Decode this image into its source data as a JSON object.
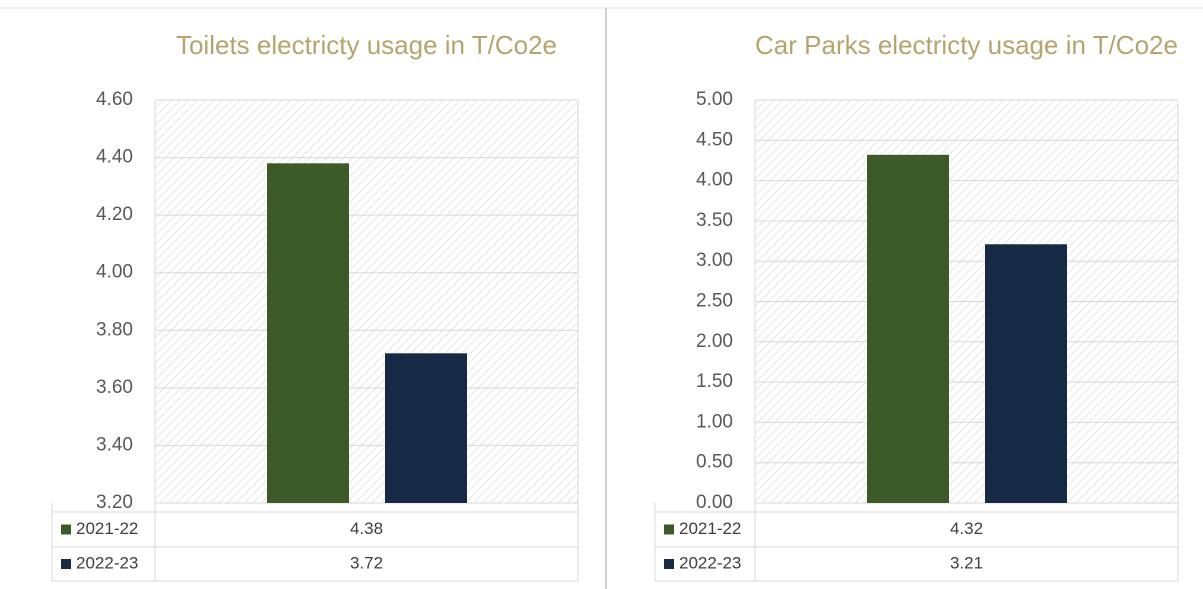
{
  "chart_data": [
    {
      "type": "bar",
      "title": "Toilets electricty usage in T/Co2e",
      "series": [
        {
          "name": "2021-22",
          "color": "#3b5a27",
          "values": [
            4.38
          ]
        },
        {
          "name": "2022-23",
          "color": "#172a45",
          "values": [
            3.72
          ]
        }
      ],
      "ylim": [
        3.2,
        4.6
      ],
      "yticks": [
        {
          "value": 3.2,
          "label": "3.20"
        },
        {
          "value": 3.4,
          "label": "3.40"
        },
        {
          "value": 3.6,
          "label": "3.60"
        },
        {
          "value": 3.8,
          "label": "3.80"
        },
        {
          "value": 4.0,
          "label": "4.00"
        },
        {
          "value": 4.2,
          "label": "4.20"
        },
        {
          "value": 4.4,
          "label": "4.40"
        },
        {
          "value": 4.6,
          "label": "4.60"
        }
      ],
      "grid": true
    },
    {
      "type": "bar",
      "title": "Car Parks electricty usage in T/Co2e",
      "series": [
        {
          "name": "2021-22",
          "color": "#3b5a27",
          "values": [
            4.32
          ]
        },
        {
          "name": "2022-23",
          "color": "#172a45",
          "values": [
            3.21
          ]
        }
      ],
      "ylim": [
        0,
        5
      ],
      "yticks": [
        {
          "value": 0,
          "label": "0.00"
        },
        {
          "value": 0.5,
          "label": "0.50"
        },
        {
          "value": 1,
          "label": "1.00"
        },
        {
          "value": 1.5,
          "label": "1.50"
        },
        {
          "value": 2,
          "label": "2.00"
        },
        {
          "value": 2.5,
          "label": "2.50"
        },
        {
          "value": 3,
          "label": "3.00"
        },
        {
          "value": 3.5,
          "label": "3.50"
        },
        {
          "value": 4,
          "label": "4.00"
        },
        {
          "value": 4.5,
          "label": "4.50"
        },
        {
          "value": 5,
          "label": "5.00"
        }
      ],
      "grid": true
    }
  ]
}
